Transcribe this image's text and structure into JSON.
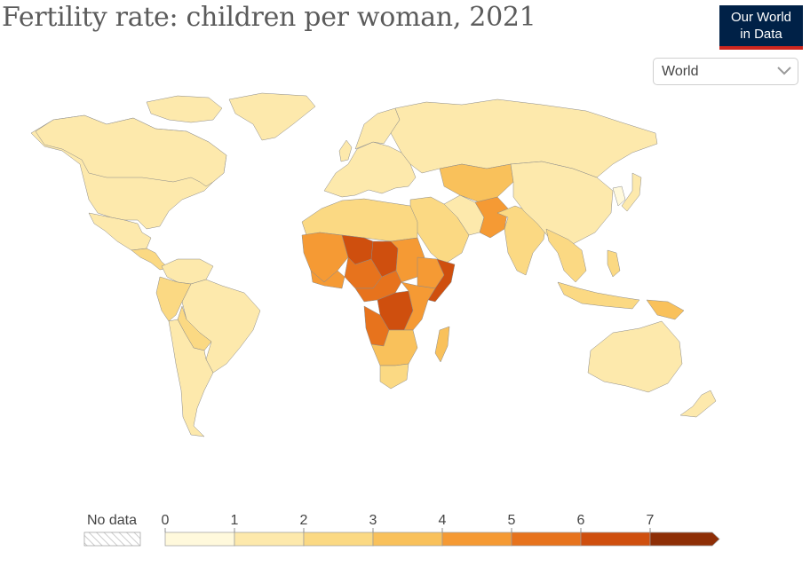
{
  "title": "Fertility rate: children per woman, 2021",
  "logo": {
    "line1": "Our World",
    "line2": "in Data"
  },
  "region_selector": {
    "selected": "World"
  },
  "legend": {
    "no_data_label": "No data",
    "ticks": [
      "0",
      "1",
      "2",
      "3",
      "4",
      "5",
      "6",
      "7"
    ],
    "bins": [
      {
        "range": "0–1",
        "color": "#fff9dc"
      },
      {
        "range": "1–2",
        "color": "#fde9ac"
      },
      {
        "range": "2–3",
        "color": "#fbd983"
      },
      {
        "range": "3–4",
        "color": "#f9c15b"
      },
      {
        "range": "4–5",
        "color": "#f59a34"
      },
      {
        "range": "5–6",
        "color": "#e7731d"
      },
      {
        "range": "6–7",
        "color": "#cf4f0e"
      },
      {
        "range": ">7",
        "color": "#8e2e06"
      }
    ]
  },
  "regions": [
    {
      "name": "North America",
      "value": 1.7
    },
    {
      "name": "Canada",
      "value": 1.4
    },
    {
      "name": "Greenland",
      "value": 1.8
    },
    {
      "name": "Mexico",
      "value": 1.8
    },
    {
      "name": "Central America",
      "value": 2.2
    },
    {
      "name": "Colombia & Venezuela",
      "value": 1.8
    },
    {
      "name": "Brazil",
      "value": 1.6
    },
    {
      "name": "Andean South America",
      "value": 2.2
    },
    {
      "name": "Bolivia & Paraguay",
      "value": 2.6
    },
    {
      "name": "Southern Cone",
      "value": 1.8
    },
    {
      "name": "Europe",
      "value": 1.5
    },
    {
      "name": "Scandinavia",
      "value": 1.6
    },
    {
      "name": "Russia",
      "value": 1.5
    },
    {
      "name": "Central Asia",
      "value": 3.2
    },
    {
      "name": "Middle East",
      "value": 2.6
    },
    {
      "name": "Afghanistan & Pakistan",
      "value": 4.4
    },
    {
      "name": "Iran",
      "value": 1.7
    },
    {
      "name": "India",
      "value": 2.0
    },
    {
      "name": "China & Mongolia",
      "value": 1.2
    },
    {
      "name": "Southeast Asia",
      "value": 2.1
    },
    {
      "name": "Indonesia",
      "value": 2.2
    },
    {
      "name": "Philippines",
      "value": 2.8
    },
    {
      "name": "Japan",
      "value": 1.3
    },
    {
      "name": "Korea",
      "value": 0.9
    },
    {
      "name": "North Africa",
      "value": 2.6
    },
    {
      "name": "Sahel West",
      "value": 4.6
    },
    {
      "name": "Niger",
      "value": 6.8
    },
    {
      "name": "Chad",
      "value": 6.3
    },
    {
      "name": "Nigeria",
      "value": 5.2
    },
    {
      "name": "Coastal West Africa",
      "value": 4.2
    },
    {
      "name": "Sudan",
      "value": 4.4
    },
    {
      "name": "Ethiopia",
      "value": 4.2
    },
    {
      "name": "Somalia",
      "value": 6.3
    },
    {
      "name": "Central Africa",
      "value": 5.4
    },
    {
      "name": "DR Congo",
      "value": 6.2
    },
    {
      "name": "East Africa",
      "value": 4.6
    },
    {
      "name": "Angola",
      "value": 5.3
    },
    {
      "name": "Southern Africa",
      "value": 3.4
    },
    {
      "name": "South Africa",
      "value": 2.4
    },
    {
      "name": "Madagascar",
      "value": 3.8
    },
    {
      "name": "Australia",
      "value": 1.6
    },
    {
      "name": "New Zealand",
      "value": 1.7
    },
    {
      "name": "Papua New Guinea",
      "value": 3.2
    }
  ]
}
